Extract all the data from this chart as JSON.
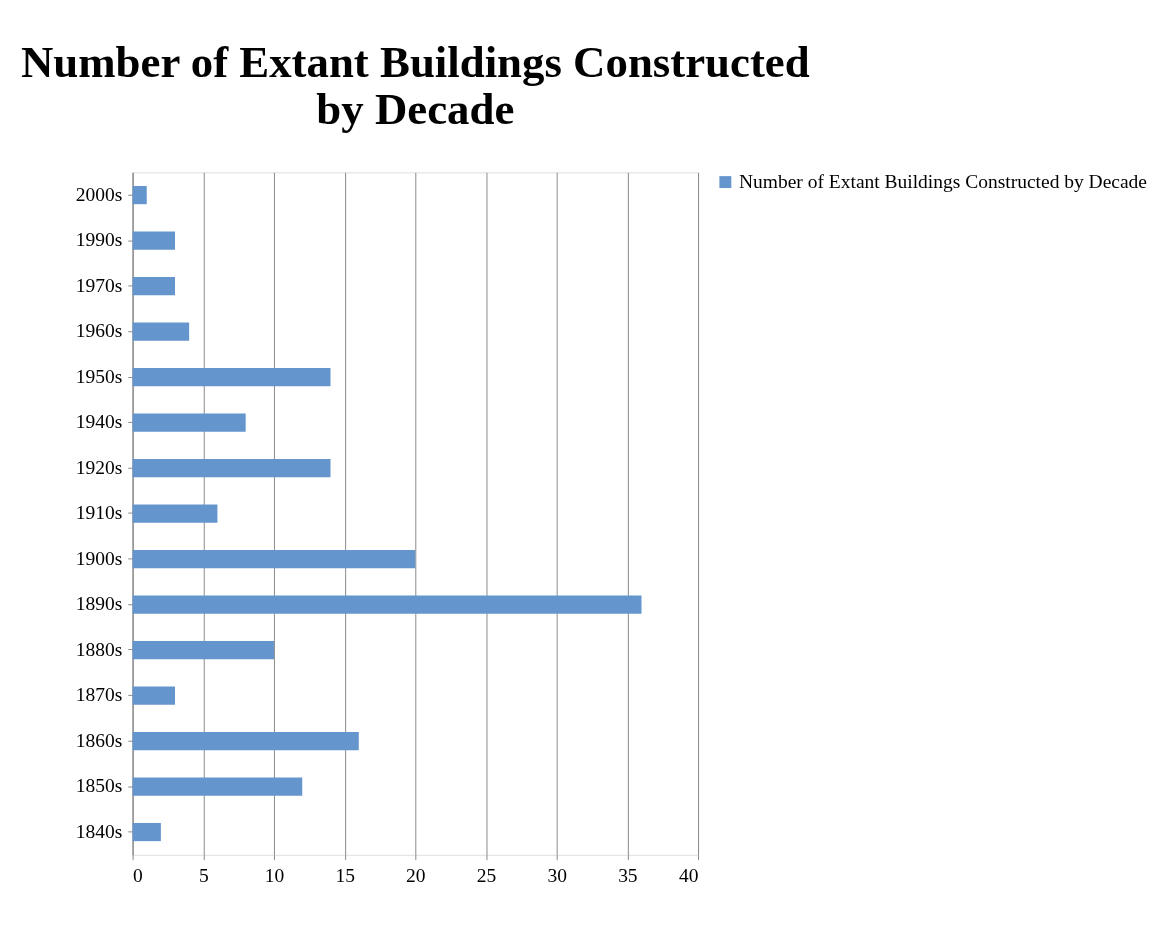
{
  "chart_data": {
    "type": "bar",
    "orientation": "horizontal",
    "title": "Number of Extant Buildings Constructed by Decade",
    "categories": [
      "2000s",
      "1990s",
      "1970s",
      "1960s",
      "1950s",
      "1940s",
      "1920s",
      "1910s",
      "1900s",
      "1890s",
      "1880s",
      "1870s",
      "1860s",
      "1850s",
      "1840s"
    ],
    "series": [
      {
        "name": "Number of Extant Buildings Constructed by Decade",
        "color": "#6495cd",
        "values": [
          1,
          3,
          3,
          4,
          14,
          8,
          14,
          6,
          20,
          36,
          10,
          3,
          16,
          12,
          2
        ]
      }
    ],
    "xlim": [
      0,
      40
    ],
    "xticks": [
      0,
      5,
      10,
      15,
      20,
      25,
      30,
      35,
      40
    ],
    "grid": "x",
    "legend": "right"
  }
}
